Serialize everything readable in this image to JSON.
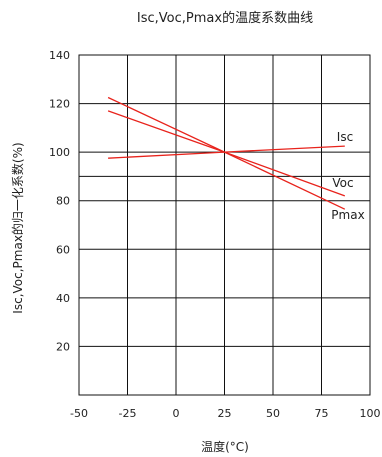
{
  "chart_data": {
    "type": "line",
    "title": "Isc,Voc,Pmax的温度系数曲线",
    "xlabel": "温度(°C)",
    "ylabel": "Isc,Voc,Pmax的归一化系数(%)",
    "x_ticks": [
      "-50",
      "-25",
      "0",
      "25",
      "50",
      "75",
      "100"
    ],
    "y_ticks": [
      "20",
      "40",
      "60",
      "80",
      "100",
      "120",
      "140"
    ],
    "xlim": [
      -50,
      100
    ],
    "ylim": [
      0,
      140
    ],
    "grid": true,
    "extra_hline": 90,
    "line_color": "#e8231c",
    "series": [
      {
        "name": "Isc",
        "x": [
          -35,
          25,
          87
        ],
        "y": [
          97.5,
          100,
          102.5
        ]
      },
      {
        "name": "Voc",
        "x": [
          -35,
          25,
          87
        ],
        "y": [
          117,
          100,
          82
        ]
      },
      {
        "name": "Pmax",
        "x": [
          -35,
          25,
          87
        ],
        "y": [
          122.5,
          100,
          76.5
        ]
      }
    ]
  }
}
